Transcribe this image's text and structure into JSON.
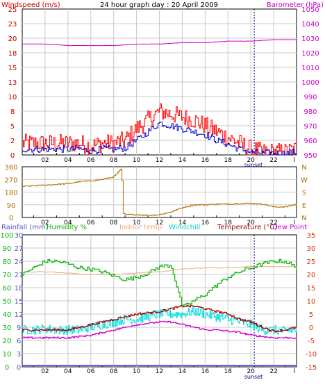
{
  "colors": {
    "wind": "#cc0000",
    "gust_line": "#ff0000",
    "avg_wind": "#0000cc",
    "baro": "#cc00cc",
    "dir": "#b86b00",
    "rain": "#5555cc",
    "humidity": "#00b400",
    "indoor": "#f0a878",
    "windchill": "#00e0e0",
    "temp": "#990000",
    "dew": "#cc00cc",
    "temp_axis": "#cc3300",
    "grid": "#c8c8c8",
    "sunset": "#000080",
    "zero_line": "#6666ff"
  },
  "chart_data": [
    {
      "type": "line",
      "title": "24 hour graph day : 20 April 2009",
      "left_label": "Windspeed (m/s)",
      "right_label": "Barometer (hPa)",
      "x_ticks": [
        "02",
        "04",
        "06",
        "08",
        "10",
        "12",
        "14",
        "16",
        "18",
        "20",
        "22"
      ],
      "x_end_tick": "l",
      "sunset_label": "sunset",
      "y_left_ticks": [
        "0",
        "2",
        "5",
        "8",
        "10",
        "13",
        "15",
        "18",
        "20",
        "23",
        "25"
      ],
      "y_left_range": [
        0,
        25
      ],
      "y_right_ticks": [
        "950",
        "960",
        "970",
        "980",
        "990",
        "1000",
        "1010",
        "1020",
        "1030",
        "1040",
        "1050"
      ],
      "y_right_range": [
        950,
        1050
      ],
      "series": [
        {
          "key": "gust",
          "axis": "left",
          "x": [
            0,
            1,
            2,
            3,
            4,
            5,
            6,
            7,
            8,
            9,
            10,
            11,
            12,
            13,
            14,
            15,
            16,
            17,
            18,
            19,
            20,
            21,
            22,
            23,
            24
          ],
          "y": [
            2,
            2,
            2,
            2,
            2,
            2,
            1.5,
            2,
            2,
            2.5,
            4.5,
            6,
            7.5,
            7,
            6.5,
            6,
            5,
            4,
            3,
            2,
            1,
            0.5,
            0.5,
            0.5,
            1
          ]
        },
        {
          "key": "avg_wind",
          "axis": "left",
          "x": [
            0,
            1,
            2,
            3,
            4,
            5,
            6,
            7,
            8,
            9,
            10,
            11,
            12,
            13,
            14,
            15,
            16,
            17,
            18,
            19,
            20,
            21,
            22,
            23,
            24
          ],
          "y": [
            1,
            1,
            1,
            1,
            1,
            1,
            0.7,
            1,
            1,
            1.2,
            2.5,
            4,
            5.5,
            5,
            4.5,
            4,
            3.5,
            2.5,
            1.8,
            1,
            0.5,
            0.3,
            0.3,
            0.3,
            0.5
          ]
        },
        {
          "key": "barometer",
          "axis": "right",
          "x": [
            0,
            2,
            4,
            6,
            8,
            10,
            12,
            14,
            16,
            18,
            20,
            22,
            24
          ],
          "y": [
            1026,
            1026,
            1025,
            1025,
            1025,
            1026,
            1026,
            1027,
            1027,
            1028,
            1028,
            1029,
            1029
          ]
        }
      ]
    },
    {
      "type": "line",
      "x_ticks": [
        "02",
        "04",
        "06",
        "08",
        "10",
        "12",
        "14",
        "16",
        "18",
        "20",
        "22"
      ],
      "x_end_tick": "l",
      "y_left_ticks": [
        "0",
        "90",
        "180",
        "270",
        "360"
      ],
      "y_left_range": [
        0,
        360
      ],
      "y_right_ticks": [
        "N",
        "E",
        "S",
        "W",
        "N"
      ],
      "series": [
        {
          "key": "direction",
          "x": [
            0,
            1,
            2,
            3,
            4,
            5,
            6,
            7,
            8,
            8.7,
            8.8,
            9,
            10,
            11,
            12,
            13,
            14,
            15,
            16,
            17,
            18,
            19,
            20,
            21,
            22,
            23,
            24
          ],
          "y": [
            220,
            225,
            230,
            235,
            240,
            255,
            260,
            270,
            290,
            350,
            30,
            20,
            20,
            15,
            20,
            40,
            70,
            90,
            90,
            95,
            95,
            100,
            100,
            95,
            75,
            75,
            95
          ]
        }
      ]
    },
    {
      "type": "line",
      "left_label_1": "Rainfall (mm)",
      "left_label_2": "Humidity %",
      "center_label_1": "Indoor temp",
      "center_label_2": "Windchill",
      "right_label_1": "Temperature (°C)",
      "right_label_2": "Dew Point",
      "x_ticks": [
        "02",
        "04",
        "06",
        "08",
        "10",
        "12",
        "14",
        "16",
        "18",
        "20",
        "22"
      ],
      "x_end_tick": "l",
      "sunset_label": "sunset",
      "rain_ticks": [
        "0",
        "3",
        "6",
        "9",
        "12",
        "15",
        "18",
        "21",
        "24",
        "27",
        "30"
      ],
      "humidity_ticks": [
        "0",
        "10",
        "20",
        "30",
        "40",
        "50",
        "60",
        "70",
        "80",
        "90",
        "100"
      ],
      "temp_ticks": [
        "-15",
        "-10",
        "-5",
        "0",
        "5",
        "10",
        "15",
        "20",
        "25",
        "30",
        "35"
      ],
      "temp_range": [
        -15,
        35
      ],
      "humidity_range": [
        0,
        100
      ],
      "series": [
        {
          "key": "humidity",
          "x": [
            0,
            1,
            2,
            3,
            4,
            5,
            6,
            7,
            8,
            9,
            10,
            11,
            12,
            13,
            14,
            15,
            16,
            17,
            18,
            19,
            20,
            21,
            22,
            23,
            24
          ],
          "y": [
            70,
            75,
            80,
            80,
            78,
            75,
            74,
            72,
            69,
            66,
            68,
            71,
            76,
            77,
            45,
            50,
            55,
            62,
            68,
            72,
            75,
            78,
            80,
            80,
            75
          ]
        },
        {
          "key": "indoor",
          "x": [
            0,
            2,
            4,
            6,
            8,
            10,
            12,
            14,
            16,
            18,
            20,
            22,
            24
          ],
          "y": [
            21,
            21,
            20.5,
            20,
            20,
            20.5,
            21,
            22,
            22.5,
            22.5,
            23,
            23,
            23
          ]
        },
        {
          "key": "windchill",
          "x": [
            0,
            1,
            2,
            3,
            4,
            5,
            6,
            7,
            8,
            9,
            10,
            11,
            12,
            13,
            14,
            15,
            16,
            17,
            18,
            19,
            20,
            21,
            22,
            23,
            24
          ],
          "y": [
            -1,
            -1,
            -0.5,
            -1,
            -1,
            -1,
            0,
            1,
            2,
            3,
            3,
            4,
            5,
            5,
            5,
            6,
            5,
            4,
            3,
            2,
            1,
            -1,
            -1,
            -1.5,
            -1
          ]
        },
        {
          "key": "temperature",
          "x": [
            0,
            1,
            2,
            3,
            4,
            5,
            6,
            7,
            8,
            9,
            10,
            11,
            12,
            13,
            14,
            15,
            16,
            17,
            18,
            19,
            20,
            21,
            22,
            23,
            24
          ],
          "y": [
            -1,
            -1,
            -1,
            -1,
            -1,
            0,
            1,
            2,
            3,
            4,
            5,
            5.5,
            6,
            7,
            8,
            8,
            7,
            6,
            5,
            3,
            2,
            0,
            -1.5,
            -1,
            0
          ]
        },
        {
          "key": "dewpoint",
          "x": [
            0,
            1,
            2,
            3,
            4,
            5,
            6,
            7,
            8,
            9,
            10,
            11,
            12,
            13,
            14,
            15,
            16,
            17,
            18,
            19,
            20,
            21,
            22,
            23,
            24
          ],
          "y": [
            -4,
            -4,
            -4,
            -4,
            -4,
            -3.5,
            -3,
            -2,
            -1,
            0,
            1,
            1.5,
            2,
            2,
            1,
            0,
            -1,
            -1,
            -1.5,
            -2,
            -3,
            -3.5,
            -4,
            -4,
            -4
          ]
        }
      ]
    }
  ]
}
